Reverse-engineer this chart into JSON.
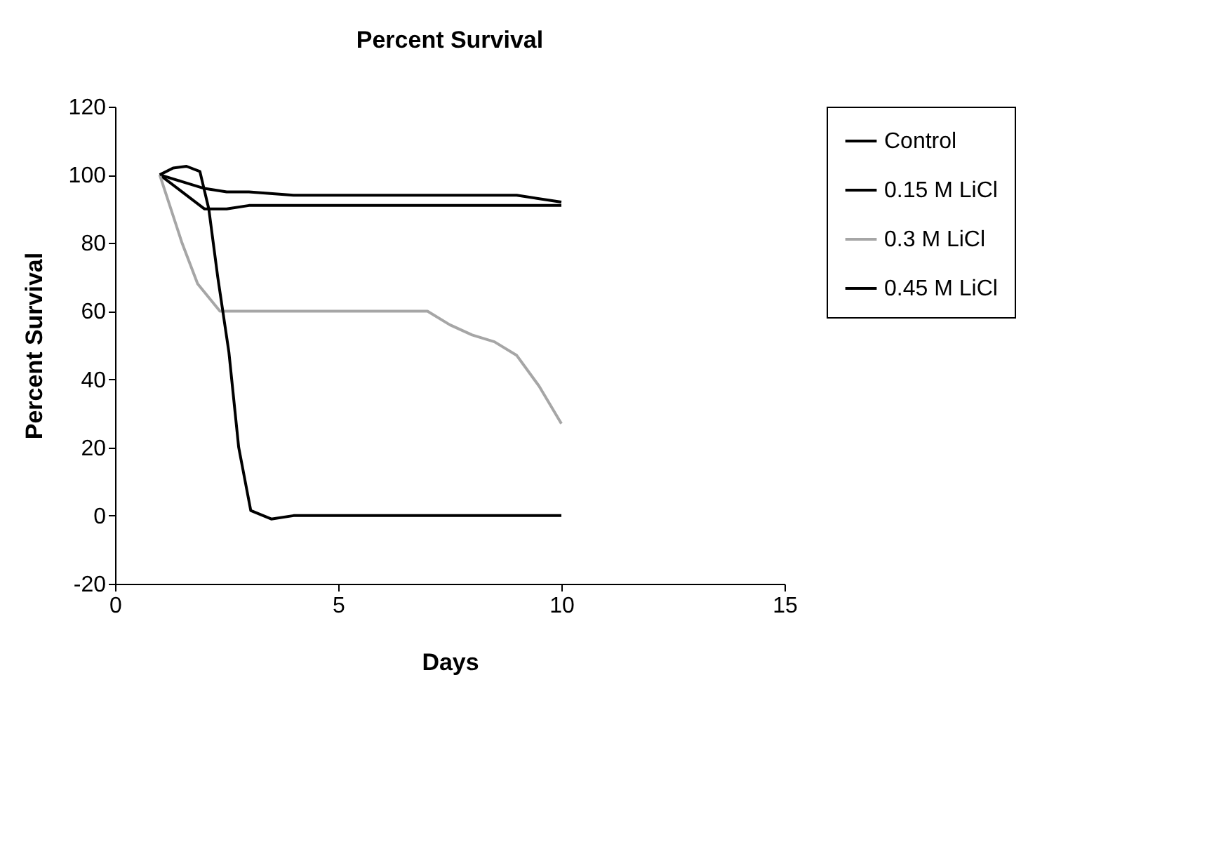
{
  "chart_data": {
    "type": "line",
    "title": "Percent Survival",
    "xlabel": "Days",
    "ylabel": "Percent Survival",
    "series": [
      {
        "name": "Control",
        "color": "#000000",
        "x": [
          1,
          1.5,
          2,
          2.5,
          3,
          4,
          5,
          6,
          7,
          8,
          9,
          10
        ],
        "values": [
          100,
          98,
          96,
          95,
          95,
          94,
          94,
          94,
          94,
          94,
          94,
          92
        ]
      },
      {
        "name": "0.15 M LiCl",
        "color": "#000000",
        "x": [
          1,
          1.5,
          2,
          2.5,
          3,
          4,
          5,
          6,
          7,
          8,
          9,
          10
        ],
        "values": [
          100,
          95,
          90,
          90,
          91,
          91,
          91,
          91,
          91,
          91,
          91,
          91
        ]
      },
      {
        "name": "0.3 M LiCl",
        "color": "#a6a6a6",
        "x": [
          1,
          1.5,
          1.85,
          2.35,
          3,
          4,
          5,
          6,
          7,
          7.5,
          8,
          8.5,
          9,
          9.5,
          10
        ],
        "values": [
          100,
          80,
          68,
          60,
          60,
          60,
          60,
          60,
          60,
          56,
          53,
          51,
          47,
          38,
          27
        ]
      },
      {
        "name": "0.45 M LiCl",
        "color": "#000000",
        "x": [
          1,
          1.3,
          1.6,
          1.9,
          2.1,
          2.3,
          2.55,
          2.77,
          3.04,
          3.5,
          4,
          5,
          6,
          7,
          8,
          9,
          10
        ],
        "values": [
          100,
          102,
          102.5,
          101,
          90,
          70,
          48,
          20,
          1.5,
          -1,
          0,
          0,
          0,
          0,
          0,
          0,
          0
        ]
      }
    ],
    "xlim": [
      0,
      15
    ],
    "xticks": [
      0,
      5,
      10,
      15
    ],
    "ylim": [
      -20,
      120
    ],
    "yticks": [
      -20,
      0,
      20,
      40,
      60,
      80,
      100,
      120
    ],
    "legend": "right",
    "grid": false,
    "marker": "none",
    "line_style": "solid"
  }
}
